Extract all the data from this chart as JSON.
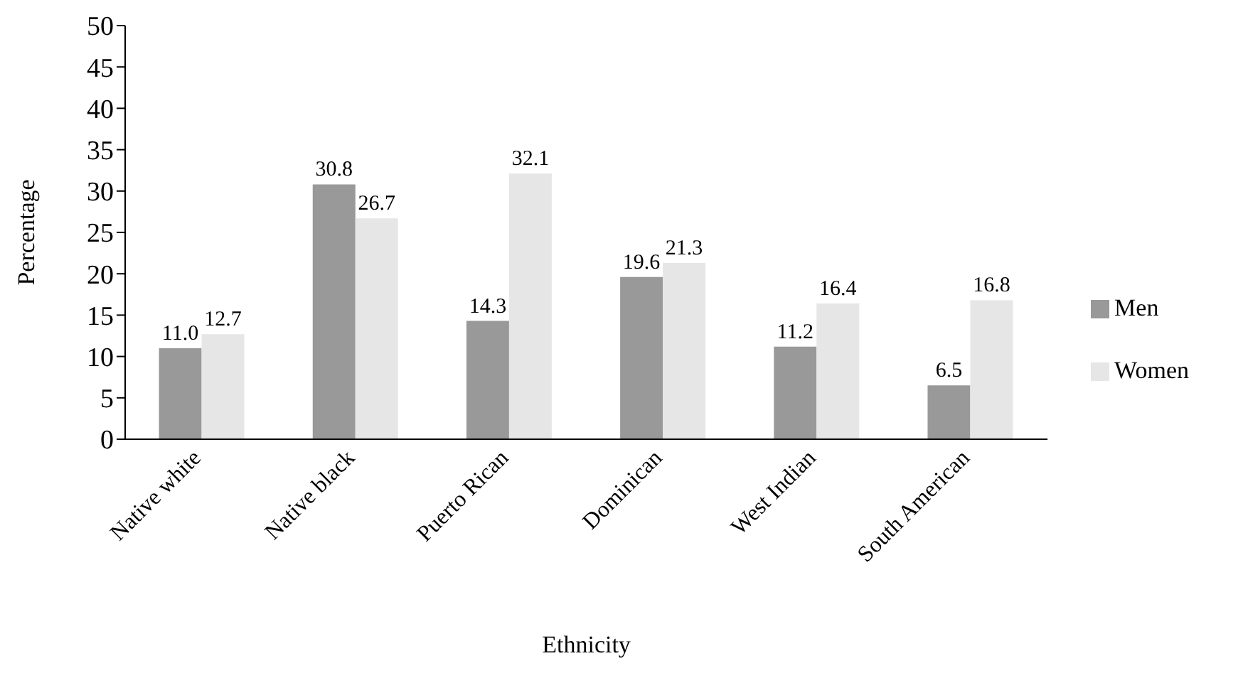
{
  "chart_data": {
    "type": "bar",
    "xlabel": "Ethnicity",
    "ylabel": "Percentage",
    "categories": [
      "Native white",
      "Native black",
      "Puerto Rican",
      "Dominican",
      "West Indian",
      "South American"
    ],
    "series": [
      {
        "name": "Men",
        "color": "#999999",
        "values": [
          11.0,
          30.8,
          14.3,
          19.6,
          11.2,
          6.5
        ],
        "value_labels": [
          "11.0",
          "30.8",
          "14.3",
          "19.6",
          "11.2",
          "6.5"
        ]
      },
      {
        "name": "Women",
        "color": "#e6e6e6",
        "values": [
          12.7,
          26.7,
          32.1,
          21.3,
          16.4,
          16.8
        ],
        "value_labels": [
          "12.7",
          "26.7",
          "32.1",
          "21.3",
          "16.4",
          "16.8"
        ]
      }
    ],
    "ylim": [
      0,
      50
    ],
    "yticks": [
      0,
      5,
      10,
      15,
      20,
      25,
      30,
      35,
      40,
      45,
      50
    ],
    "grid": false,
    "legend": "right"
  }
}
